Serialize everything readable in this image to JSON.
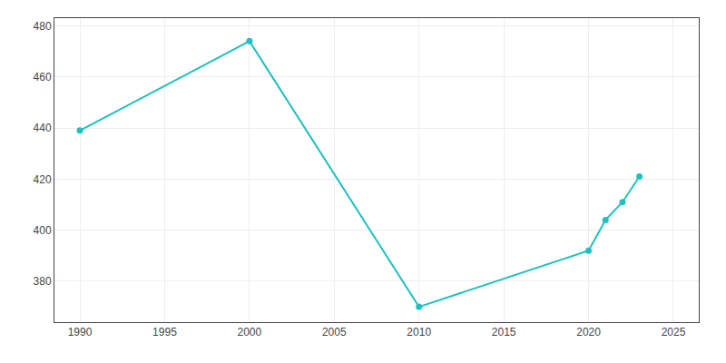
{
  "chart_data": {
    "type": "line",
    "x": [
      1990,
      2000,
      2010,
      2020,
      2021,
      2022,
      2023
    ],
    "values": [
      439,
      474,
      370,
      392,
      404,
      411,
      421
    ],
    "color": "#20C0C0",
    "marker": "circle",
    "xlim": [
      1988.5,
      2026.5
    ],
    "ylim": [
      364,
      483
    ],
    "xticks": [
      1990,
      1995,
      2000,
      2005,
      2010,
      2015,
      2020,
      2025
    ],
    "yticks": [
      380,
      400,
      420,
      440,
      460,
      480
    ],
    "grid": true
  }
}
